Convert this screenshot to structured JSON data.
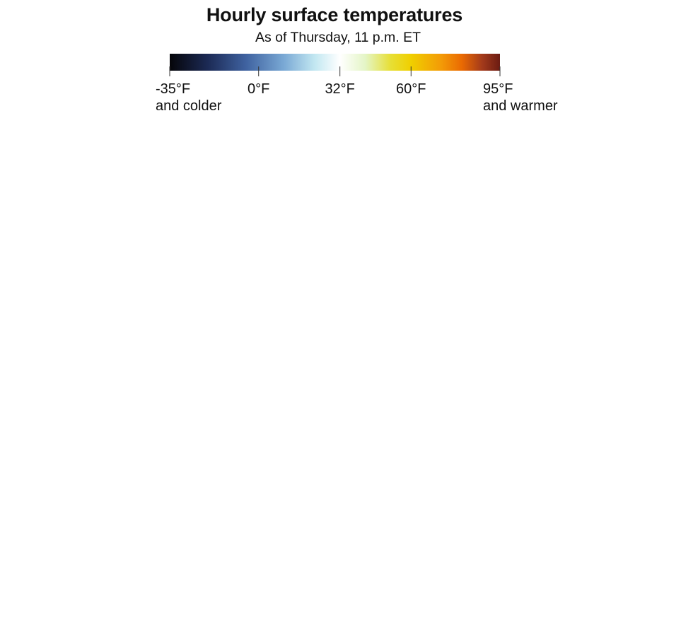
{
  "chart_data": {
    "type": "heatmap",
    "title": "Hourly surface temperatures",
    "subtitle": "As of Thursday, 11 p.m. ET",
    "color_scale": {
      "unit": "°F",
      "range": [
        -35,
        95
      ],
      "stops": [
        {
          "value": -35,
          "color": "#050509"
        },
        {
          "value": -20,
          "color": "#1c2a55"
        },
        {
          "value": -5,
          "color": "#3f62a0"
        },
        {
          "value": 10,
          "color": "#7aa9d5"
        },
        {
          "value": 22,
          "color": "#c2e7f1"
        },
        {
          "value": 32,
          "color": "#ffffff"
        },
        {
          "value": 42,
          "color": "#e4f5c6"
        },
        {
          "value": 52,
          "color": "#e7df35"
        },
        {
          "value": 60,
          "color": "#f0cf00"
        },
        {
          "value": 72,
          "color": "#f39a07"
        },
        {
          "value": 80,
          "color": "#ea6a02"
        },
        {
          "value": 88,
          "color": "#a33a1b"
        },
        {
          "value": 95,
          "color": "#6b1b12"
        }
      ],
      "ticks": [
        {
          "value": -35,
          "label": "-35°F",
          "sublabel": "and colder"
        },
        {
          "value": 0,
          "label": "0°F",
          "sublabel": ""
        },
        {
          "value": 32,
          "label": "32°F",
          "sublabel": ""
        },
        {
          "value": 60,
          "label": "60°F",
          "sublabel": ""
        },
        {
          "value": 95,
          "label": "95°F",
          "sublabel": "and warmer"
        }
      ]
    }
  }
}
